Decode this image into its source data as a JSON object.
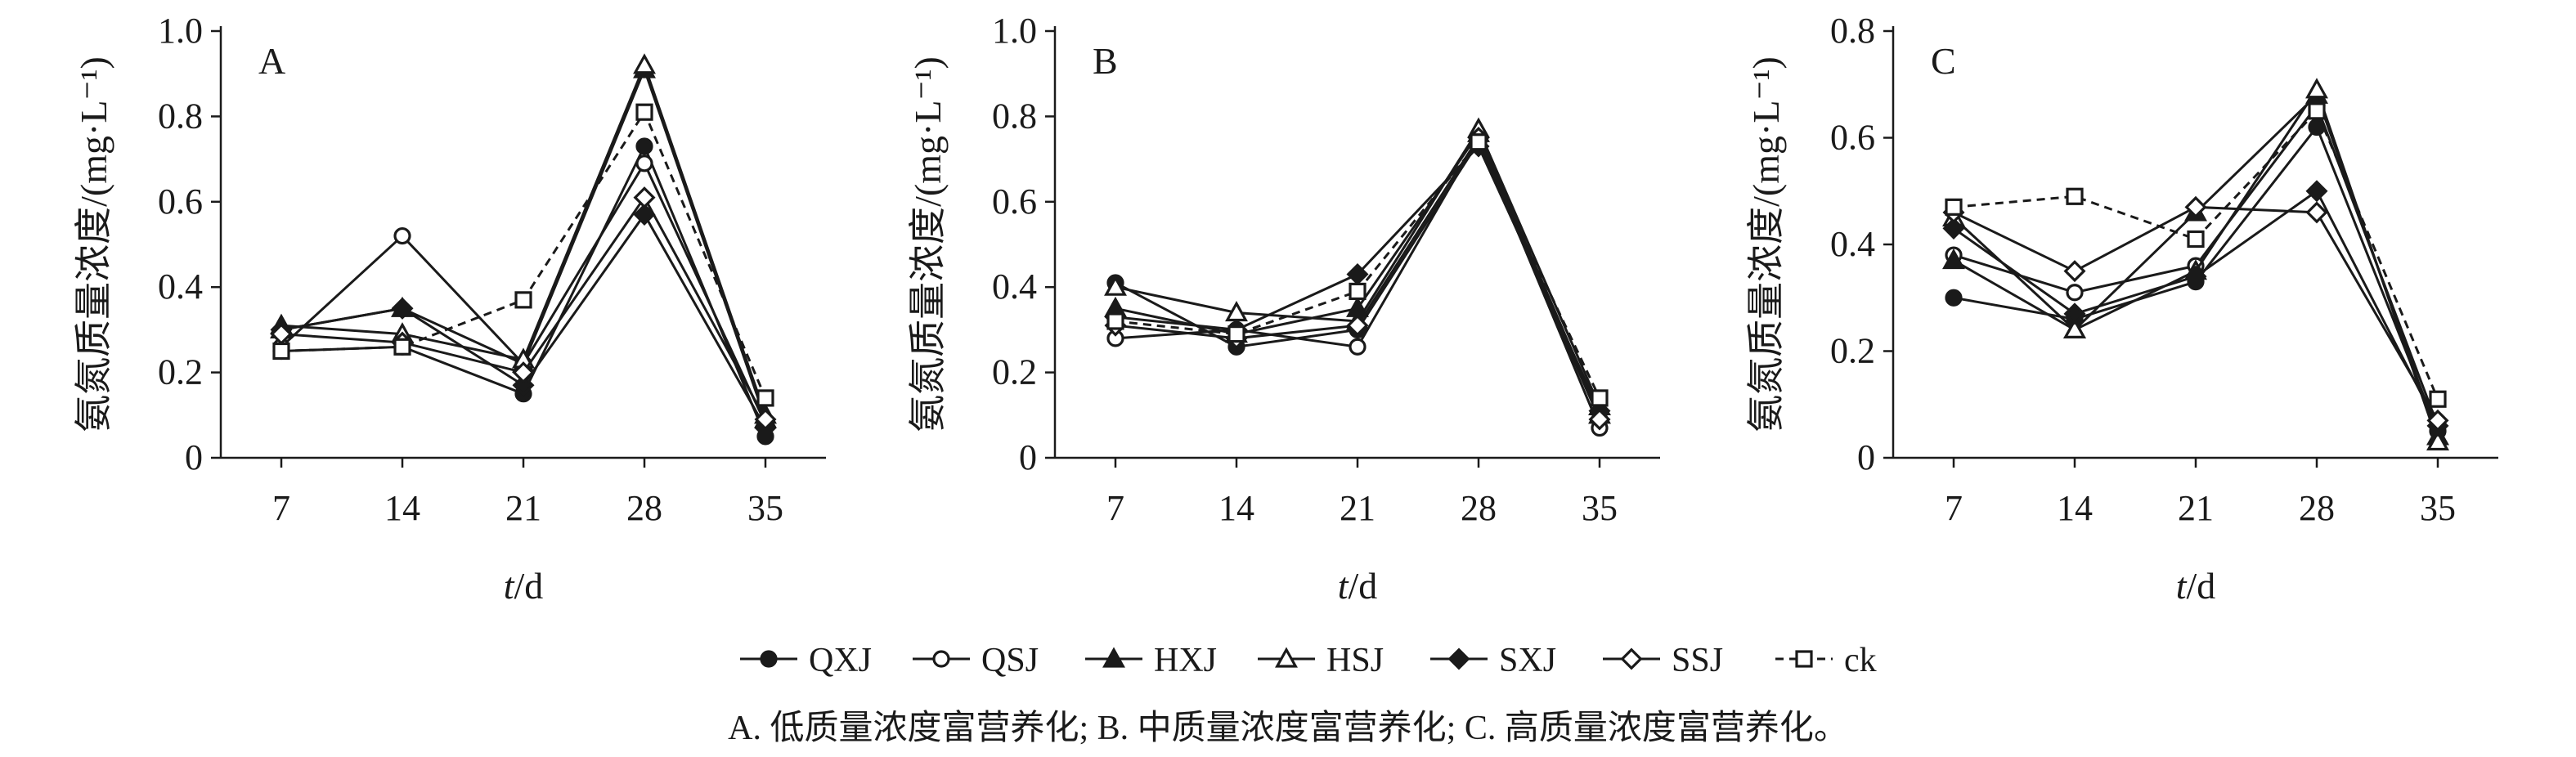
{
  "figure": {
    "legend": [
      "QXJ",
      "QSJ",
      "HXJ",
      "HSJ",
      "SXJ",
      "SSJ",
      "ck"
    ],
    "caption": "A. 低质量浓度富营养化; B. 中质量浓度富营养化; C. 高质量浓度富营养化。"
  },
  "series_styles": {
    "QXJ": {
      "marker": "circle",
      "fill": "filled",
      "dash": "solid"
    },
    "QSJ": {
      "marker": "circle",
      "fill": "open",
      "dash": "solid"
    },
    "HXJ": {
      "marker": "triangle",
      "fill": "filled",
      "dash": "solid"
    },
    "HSJ": {
      "marker": "triangle",
      "fill": "open",
      "dash": "solid"
    },
    "SXJ": {
      "marker": "diamond",
      "fill": "filled",
      "dash": "solid"
    },
    "SSJ": {
      "marker": "diamond",
      "fill": "open",
      "dash": "solid"
    },
    "ck": {
      "marker": "square",
      "fill": "open",
      "dash": "dashed"
    }
  },
  "colors": {
    "ink": "#1a1a1a",
    "background": "#ffffff"
  },
  "chart_data": [
    {
      "type": "line",
      "panel": "A",
      "ylabel": "氨氮质量浓度/(mg·L⁻¹)",
      "xlabel_var": "t",
      "xlabel_unit": "/d",
      "x": [
        7,
        14,
        21,
        28,
        35
      ],
      "ylim": [
        0,
        1.0
      ],
      "yticks": [
        "0",
        "0.2",
        "0.4",
        "0.6",
        "0.8",
        "1.0"
      ],
      "series": [
        {
          "name": "QXJ",
          "values": [
            0.25,
            0.26,
            0.15,
            0.73,
            0.05
          ]
        },
        {
          "name": "QSJ",
          "values": [
            0.26,
            0.52,
            0.22,
            0.69,
            0.08
          ]
        },
        {
          "name": "HXJ",
          "values": [
            0.3,
            0.35,
            0.22,
            0.91,
            0.09
          ]
        },
        {
          "name": "HSJ",
          "values": [
            0.31,
            0.29,
            0.23,
            0.92,
            0.1
          ]
        },
        {
          "name": "SXJ",
          "values": [
            0.3,
            0.35,
            0.17,
            0.57,
            0.07
          ]
        },
        {
          "name": "SSJ",
          "values": [
            0.29,
            0.27,
            0.2,
            0.61,
            0.09
          ]
        },
        {
          "name": "ck",
          "values": [
            0.25,
            0.26,
            0.37,
            0.81,
            0.14
          ]
        }
      ]
    },
    {
      "type": "line",
      "panel": "B",
      "ylabel": "氨氮质量浓度/(mg·L⁻¹)",
      "xlabel_var": "t",
      "xlabel_unit": "/d",
      "x": [
        7,
        14,
        21,
        28,
        35
      ],
      "ylim": [
        0,
        1.0
      ],
      "yticks": [
        "0",
        "0.2",
        "0.4",
        "0.6",
        "0.8",
        "1.0"
      ],
      "series": [
        {
          "name": "QXJ",
          "values": [
            0.41,
            0.26,
            0.3,
            0.74,
            0.09
          ]
        },
        {
          "name": "QSJ",
          "values": [
            0.28,
            0.3,
            0.26,
            0.75,
            0.07
          ]
        },
        {
          "name": "HXJ",
          "values": [
            0.35,
            0.29,
            0.35,
            0.76,
            0.1
          ]
        },
        {
          "name": "HSJ",
          "values": [
            0.4,
            0.34,
            0.32,
            0.77,
            0.12
          ]
        },
        {
          "name": "SXJ",
          "values": [
            0.33,
            0.3,
            0.43,
            0.73,
            0.11
          ]
        },
        {
          "name": "SSJ",
          "values": [
            0.31,
            0.28,
            0.31,
            0.75,
            0.09
          ]
        },
        {
          "name": "ck",
          "values": [
            0.32,
            0.29,
            0.39,
            0.74,
            0.14
          ]
        }
      ]
    },
    {
      "type": "line",
      "panel": "C",
      "ylabel": "氨氮质量浓度/(mg·L⁻¹)",
      "xlabel_var": "t",
      "xlabel_unit": "/d",
      "x": [
        7,
        14,
        21,
        28,
        35
      ],
      "ylim": [
        0,
        0.8
      ],
      "yticks": [
        "0",
        "0.2",
        "0.4",
        "0.6",
        "0.8"
      ],
      "series": [
        {
          "name": "QXJ",
          "values": [
            0.3,
            0.26,
            0.33,
            0.62,
            0.05
          ]
        },
        {
          "name": "QSJ",
          "values": [
            0.38,
            0.31,
            0.36,
            0.66,
            0.06
          ]
        },
        {
          "name": "HXJ",
          "values": [
            0.37,
            0.24,
            0.46,
            0.68,
            0.04
          ]
        },
        {
          "name": "HSJ",
          "values": [
            0.45,
            0.24,
            0.35,
            0.69,
            0.03
          ]
        },
        {
          "name": "SXJ",
          "values": [
            0.43,
            0.27,
            0.34,
            0.5,
            0.06
          ]
        },
        {
          "name": "SSJ",
          "values": [
            0.46,
            0.35,
            0.47,
            0.46,
            0.07
          ]
        },
        {
          "name": "ck",
          "values": [
            0.47,
            0.49,
            0.41,
            0.65,
            0.11
          ]
        }
      ]
    }
  ]
}
